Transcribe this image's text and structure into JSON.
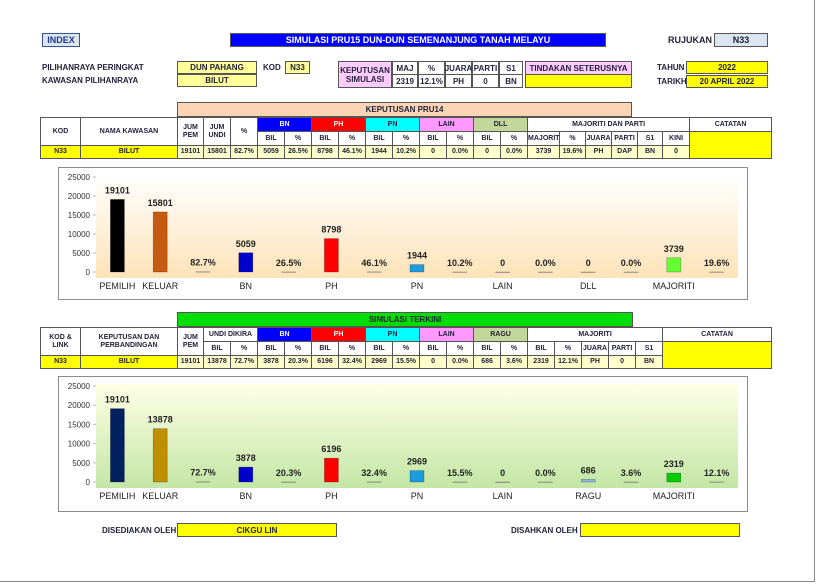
{
  "header": {
    "index": "INDEX",
    "title": "SIMULASI PRU15 DUN-DUN SEMENANJUNG TANAH MELAYU",
    "rujukan_label": "RUJUKAN",
    "rujukan": "N33"
  },
  "info": {
    "peringkat_label": "PILIHANRAYA PERINGKAT",
    "peringkat": "DUN PAHANG",
    "kod_label": "KOD",
    "kod": "N33",
    "kawasan_label": "KAWASAN PILIHANRAYA",
    "kawasan": "BILUT",
    "keputusan_label": "KEPUTUSAN SIMULASI",
    "summary_head": [
      "MAJ",
      "%",
      "JUARA",
      "PARTI",
      "S1"
    ],
    "summary_values": [
      "2319",
      "12.1%",
      "PH",
      "0",
      "BN"
    ],
    "tindakan_label": "TINDAKAN SETERUSNYA",
    "tahun_label": "TAHUN",
    "tahun": "2022",
    "tarikh_label": "TARIKH",
    "tarikh": "20 APRIL 2022"
  },
  "table1": {
    "title": "KEPUTUSAN PRU14",
    "head1": [
      "KOD",
      "NAMA KAWASAN",
      "JUM PEM",
      "JUM UNDI",
      "%",
      "BN",
      "PH",
      "PN",
      "LAIN",
      "DLL",
      "MAJORITI DAN PARTI",
      "CATATAN"
    ],
    "head2": [
      "BIL",
      "%",
      "BIL",
      "%",
      "BIL",
      "%",
      "BIL",
      "%",
      "BIL",
      "%",
      "MAJORITI",
      "%",
      "JUARA",
      "PARTI",
      "S1",
      "KINI"
    ],
    "row": [
      "N33",
      "BILUT",
      "19101",
      "15801",
      "82.7%",
      "5059",
      "26.5%",
      "8798",
      "46.1%",
      "1944",
      "10.2%",
      "0",
      "0.0%",
      "0",
      "0.0%",
      "3739",
      "19.6%",
      "PH",
      "DAP",
      "BN",
      "0"
    ]
  },
  "table2": {
    "title": "SIMULASI TERKINI",
    "head1": [
      "KOD & LINK",
      "KEPUTUSAN DAN PERBANDINGAN",
      "JUM PEM",
      "UNDI DIKIRA",
      "BN",
      "PH",
      "PN",
      "LAIN",
      "RAGU",
      "MAJORITI",
      "CATATAN"
    ],
    "head2": [
      "BIL",
      "%",
      "BIL",
      "%",
      "BIL",
      "%",
      "BIL",
      "%",
      "BIL",
      "%",
      "BIL",
      "%",
      "BIL",
      "%",
      "JUARA",
      "PARTI",
      "S1"
    ],
    "row": [
      "N33",
      "BILUT",
      "19101",
      "13878",
      "72.7%",
      "3878",
      "20.3%",
      "6196",
      "32.4%",
      "2969",
      "15.5%",
      "0",
      "0.0%",
      "686",
      "3.6%",
      "2319",
      "12.1%",
      "PH",
      "0",
      "BN"
    ]
  },
  "chart_data": [
    {
      "type": "bar",
      "categories": [
        "PEMILIH",
        "KELUAR",
        null,
        "BN",
        null,
        "PH",
        null,
        "PN",
        null,
        "LAIN",
        null,
        "DLL",
        null,
        "MAJORITI",
        null
      ],
      "values": [
        19101,
        15801,
        82.7,
        5059,
        26.5,
        8798,
        46.1,
        1944,
        10.2,
        0,
        0.0,
        0,
        0.0,
        3739,
        19.6
      ],
      "value_labels": [
        "19101",
        "15801",
        "82.7%",
        "5059",
        "26.5%",
        "8798",
        "46.1%",
        "1944",
        "10.2%",
        "0",
        "0.0%",
        "0",
        "0.0%",
        "3739",
        "19.6%"
      ],
      "colors": [
        "#000000",
        "#c55a11",
        "#d9d9d9",
        "#0000cc",
        "#d9d9d9",
        "#ff0000",
        "#d9d9d9",
        "#1e9bdc",
        "#d9d9d9",
        "#ff99ff",
        "#d9d9d9",
        "#c4d79b",
        "#d9d9d9",
        "#66ff33",
        "#d9d9d9"
      ],
      "ylim": [
        0,
        25000
      ],
      "yticks": [
        0,
        5000,
        10000,
        15000,
        20000,
        25000
      ]
    },
    {
      "type": "bar",
      "categories": [
        "PEMILIH",
        "KELUAR",
        null,
        "BN",
        null,
        "PH",
        null,
        "PN",
        null,
        "LAIN",
        null,
        "RAGU",
        null,
        "MAJORITI",
        null
      ],
      "values": [
        19101,
        13878,
        72.7,
        3878,
        20.3,
        6196,
        32.4,
        2969,
        15.5,
        0,
        0.0,
        686,
        3.6,
        2319,
        12.1
      ],
      "value_labels": [
        "19101",
        "13878",
        "72.7%",
        "3878",
        "20.3%",
        "6196",
        "32.4%",
        "2969",
        "15.5%",
        "0",
        "0.0%",
        "686",
        "3.6%",
        "2319",
        "12.1%"
      ],
      "colors": [
        "#002060",
        "#bf8f00",
        "#d9d9d9",
        "#0000cc",
        "#d9d9d9",
        "#ff0000",
        "#d9d9d9",
        "#1e9bdc",
        "#d9d9d9",
        "#ff99ff",
        "#d9d9d9",
        "#8db4e2",
        "#d9d9d9",
        "#00cc00",
        "#d9d9d9"
      ],
      "ylim": [
        0,
        25000
      ],
      "yticks": [
        0,
        5000,
        10000,
        15000,
        20000,
        25000
      ]
    }
  ],
  "footer": {
    "disediakan_label": "DISEDIAKAN OLEH",
    "disediakan": "CIKGU LIN",
    "disahkan_label": "DISAHKAN OLEH"
  }
}
